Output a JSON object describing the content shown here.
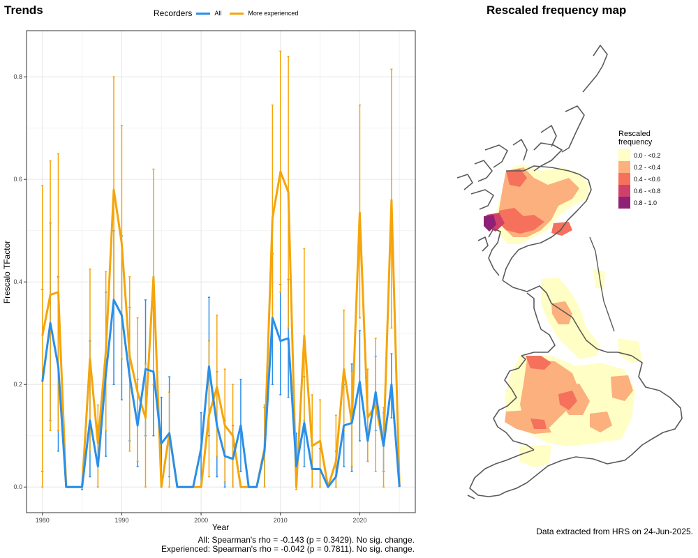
{
  "left_title": "Trends",
  "legend": {
    "title": "Recorders",
    "entries": [
      {
        "label": "All",
        "color": "#2a8fe8"
      },
      {
        "label": "More experienced",
        "color": "#f5a50a"
      }
    ]
  },
  "chart_data": {
    "type": "line",
    "xlabel": "Year",
    "ylabel": "Frescalo TFactor",
    "xlim": [
      1978,
      2027
    ],
    "ylim": [
      -0.05,
      0.89
    ],
    "x_ticks": [
      1980,
      1990,
      2000,
      2010,
      2020
    ],
    "y_ticks": [
      0.0,
      0.2,
      0.4,
      0.6,
      0.8
    ],
    "x_tick_labels": [
      "1980",
      "1990",
      "2000",
      "2010",
      "2020"
    ],
    "y_tick_labels": [
      "0.0",
      "0.2",
      "0.4",
      "0.6",
      "0.8"
    ],
    "grid": true,
    "series": [
      {
        "name": "All",
        "color": "#2a8fe8",
        "points": [
          {
            "x": 1980,
            "y": 0.205,
            "lo": 0.03,
            "hi": 0.385
          },
          {
            "x": 1981,
            "y": 0.32,
            "lo": 0.13,
            "hi": 0.515
          },
          {
            "x": 1982,
            "y": 0.235,
            "lo": 0.07,
            "hi": 0.41
          },
          {
            "x": 1983,
            "y": 0.0
          },
          {
            "x": 1984,
            "y": 0.0
          },
          {
            "x": 1985,
            "y": 0.0,
            "lo": -0.005,
            "hi": 0.005
          },
          {
            "x": 1986,
            "y": 0.13,
            "lo": 0.02,
            "hi": 0.285
          },
          {
            "x": 1987,
            "y": 0.04,
            "lo": 0.0,
            "hi": 0.12
          },
          {
            "x": 1988,
            "y": 0.22,
            "lo": 0.06,
            "hi": 0.38
          },
          {
            "x": 1989,
            "y": 0.365,
            "lo": 0.2,
            "hi": 0.5
          },
          {
            "x": 1990,
            "y": 0.335,
            "lo": 0.17,
            "hi": 0.49
          },
          {
            "x": 1991,
            "y": 0.215,
            "lo": 0.09,
            "hi": 0.35
          },
          {
            "x": 1992,
            "y": 0.12,
            "lo": 0.04,
            "hi": 0.21
          },
          {
            "x": 1993,
            "y": 0.23,
            "lo": 0.1,
            "hi": 0.365
          },
          {
            "x": 1994,
            "y": 0.225,
            "lo": 0.1,
            "hi": 0.35
          },
          {
            "x": 1995,
            "y": 0.085,
            "lo": 0.0,
            "hi": 0.175
          },
          {
            "x": 1996,
            "y": 0.105,
            "lo": 0.02,
            "hi": 0.215
          },
          {
            "x": 1997,
            "y": 0.0
          },
          {
            "x": 1998,
            "y": 0.0
          },
          {
            "x": 1999,
            "y": 0.0
          },
          {
            "x": 2000,
            "y": 0.075,
            "lo": 0.0,
            "hi": 0.145
          },
          {
            "x": 2001,
            "y": 0.235,
            "lo": 0.1,
            "hi": 0.37
          },
          {
            "x": 2002,
            "y": 0.12,
            "lo": 0.02,
            "hi": 0.225
          },
          {
            "x": 2003,
            "y": 0.06,
            "lo": 0.0,
            "hi": 0.13
          },
          {
            "x": 2004,
            "y": 0.055,
            "lo": 0.0,
            "hi": 0.12
          },
          {
            "x": 2005,
            "y": 0.12,
            "lo": 0.03,
            "hi": 0.21
          },
          {
            "x": 2006,
            "y": 0.0
          },
          {
            "x": 2007,
            "y": 0.0
          },
          {
            "x": 2008,
            "y": 0.07,
            "lo": 0.0,
            "hi": 0.155
          },
          {
            "x": 2009,
            "y": 0.33,
            "lo": 0.2,
            "hi": 0.455
          },
          {
            "x": 2010,
            "y": 0.285,
            "lo": 0.18,
            "hi": 0.395
          },
          {
            "x": 2011,
            "y": 0.29,
            "lo": 0.175,
            "hi": 0.405
          },
          {
            "x": 2012,
            "y": 0.04,
            "lo": 0.0,
            "hi": 0.105
          },
          {
            "x": 2013,
            "y": 0.125,
            "lo": 0.04,
            "hi": 0.215
          },
          {
            "x": 2014,
            "y": 0.035,
            "lo": 0.0,
            "hi": 0.08
          },
          {
            "x": 2015,
            "y": 0.035,
            "lo": 0.0,
            "hi": 0.075
          },
          {
            "x": 2016,
            "y": 0.0
          },
          {
            "x": 2017,
            "y": 0.02,
            "lo": 0.0,
            "hi": 0.07
          },
          {
            "x": 2018,
            "y": 0.12,
            "lo": 0.04,
            "hi": 0.2
          },
          {
            "x": 2019,
            "y": 0.125,
            "lo": 0.03,
            "hi": 0.24
          },
          {
            "x": 2020,
            "y": 0.205,
            "lo": 0.09,
            "hi": 0.305
          },
          {
            "x": 2021,
            "y": 0.09,
            "lo": 0.05,
            "hi": 0.14
          },
          {
            "x": 2022,
            "y": 0.185,
            "lo": 0.11,
            "hi": 0.255
          },
          {
            "x": 2023,
            "y": 0.08,
            "lo": 0.03,
            "hi": 0.145
          },
          {
            "x": 2024,
            "y": 0.2,
            "lo": 0.135,
            "hi": 0.26
          },
          {
            "x": 2025,
            "y": 0.0
          }
        ]
      },
      {
        "name": "More experienced",
        "color": "#f5a50a",
        "points": [
          {
            "x": 1980,
            "y": 0.295,
            "lo": 0.0,
            "hi": 0.588
          },
          {
            "x": 1981,
            "y": 0.375,
            "lo": 0.11,
            "hi": 0.636
          },
          {
            "x": 1982,
            "y": 0.38,
            "lo": 0.11,
            "hi": 0.65
          },
          {
            "x": 1983,
            "y": 0.0
          },
          {
            "x": 1984,
            "y": 0.0
          },
          {
            "x": 1985,
            "y": 0.0
          },
          {
            "x": 1986,
            "y": 0.25,
            "lo": 0.07,
            "hi": 0.425
          },
          {
            "x": 1987,
            "y": 0.085,
            "lo": 0.0,
            "hi": 0.16
          },
          {
            "x": 1988,
            "y": 0.265,
            "lo": 0.11,
            "hi": 0.42
          },
          {
            "x": 1989,
            "y": 0.58,
            "lo": 0.36,
            "hi": 0.8
          },
          {
            "x": 1990,
            "y": 0.475,
            "lo": 0.25,
            "hi": 0.705
          },
          {
            "x": 1991,
            "y": 0.255,
            "lo": 0.07,
            "hi": 0.41
          },
          {
            "x": 1992,
            "y": 0.185,
            "lo": 0.05,
            "hi": 0.33
          },
          {
            "x": 1993,
            "y": 0.135,
            "lo": 0.0,
            "hi": 0.24
          },
          {
            "x": 1994,
            "y": 0.41,
            "lo": 0.2,
            "hi": 0.62
          },
          {
            "x": 1995,
            "y": 0.0
          },
          {
            "x": 1996,
            "y": 0.105,
            "lo": 0.0,
            "hi": 0.185
          },
          {
            "x": 1997,
            "y": 0.0
          },
          {
            "x": 1998,
            "y": 0.0
          },
          {
            "x": 1999,
            "y": 0.0
          },
          {
            "x": 2000,
            "y": 0.0
          },
          {
            "x": 2001,
            "y": 0.14,
            "lo": 0.02,
            "hi": 0.285
          },
          {
            "x": 2002,
            "y": 0.195,
            "lo": 0.06,
            "hi": 0.335
          },
          {
            "x": 2003,
            "y": 0.12,
            "lo": 0.01,
            "hi": 0.23
          },
          {
            "x": 2004,
            "y": 0.1,
            "lo": 0.0,
            "hi": 0.2
          },
          {
            "x": 2005,
            "y": 0.0
          },
          {
            "x": 2006,
            "y": 0.0
          },
          {
            "x": 2007,
            "y": 0.0
          },
          {
            "x": 2008,
            "y": 0.075,
            "lo": 0.0,
            "hi": 0.16
          },
          {
            "x": 2009,
            "y": 0.525,
            "lo": 0.31,
            "hi": 0.745
          },
          {
            "x": 2010,
            "y": 0.615,
            "lo": 0.38,
            "hi": 0.85
          },
          {
            "x": 2011,
            "y": 0.575,
            "lo": 0.31,
            "hi": 0.84
          },
          {
            "x": 2012,
            "y": 0.0,
            "lo": -0.005,
            "hi": 0.005
          },
          {
            "x": 2013,
            "y": 0.295,
            "lo": 0.13,
            "hi": 0.465
          },
          {
            "x": 2014,
            "y": 0.08,
            "lo": 0.0,
            "hi": 0.18
          },
          {
            "x": 2015,
            "y": 0.09,
            "lo": 0.0,
            "hi": 0.17
          },
          {
            "x": 2016,
            "y": 0.0
          },
          {
            "x": 2017,
            "y": 0.05,
            "lo": 0.0,
            "hi": 0.14
          },
          {
            "x": 2018,
            "y": 0.23,
            "lo": 0.11,
            "hi": 0.345
          },
          {
            "x": 2019,
            "y": 0.125,
            "lo": 0.04,
            "hi": 0.225
          },
          {
            "x": 2020,
            "y": 0.535,
            "lo": 0.33,
            "hi": 0.745
          },
          {
            "x": 2021,
            "y": 0.135,
            "lo": 0.05,
            "hi": 0.23
          },
          {
            "x": 2022,
            "y": 0.16,
            "lo": 0.03,
            "hi": 0.29
          },
          {
            "x": 2023,
            "y": 0.08,
            "lo": 0.0,
            "hi": 0.155
          },
          {
            "x": 2024,
            "y": 0.56,
            "lo": 0.31,
            "hi": 0.815
          },
          {
            "x": 2025,
            "y": 0.0
          }
        ]
      }
    ]
  },
  "stats": {
    "line1": "All: Spearman's rho = -0.143 (p = 0.3429). No sig. change.",
    "line2": "Experienced: Spearman's rho = -0.042 (p = 0.7811). No sig. change."
  },
  "map": {
    "title": "Rescaled frequency map",
    "legend_title_1": "Rescaled",
    "legend_title_2": "frequency",
    "legend_items": [
      {
        "label": "0.0 - <0.2",
        "color": "#fffec4"
      },
      {
        "label": "0.2 - <0.4",
        "color": "#fbb07e"
      },
      {
        "label": "0.4 - <0.6",
        "color": "#f5715c"
      },
      {
        "label": "0.6 - <0.8",
        "color": "#d0406a"
      },
      {
        "label": "0.8 - 1.0",
        "color": "#8e2175"
      }
    ],
    "footer": "Data extracted from HRS on 24-Jun-2025."
  }
}
